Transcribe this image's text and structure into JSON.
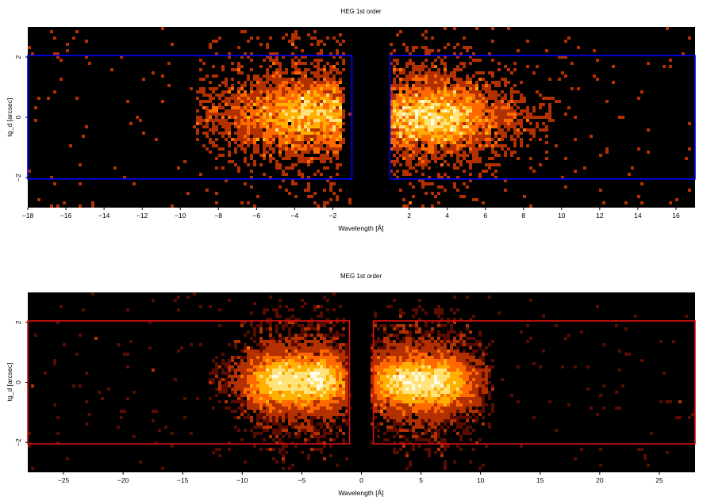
{
  "chart_data": [
    {
      "type": "heatmap",
      "title": "HEG 1st order",
      "xlabel": "Wavelength [Å]",
      "ylabel": "tg_d [arcsec]",
      "xlim": [
        -18,
        17
      ],
      "ylim": [
        -3,
        3
      ],
      "xticks": [
        -18,
        -16,
        -14,
        -12,
        -10,
        -8,
        -6,
        -4,
        -2,
        2,
        4,
        6,
        8,
        10,
        12,
        14,
        16
      ],
      "yticks": [
        -2,
        0,
        2
      ],
      "background": "#000000",
      "colormap": [
        "#5a0c00",
        "#b33000",
        "#ff6a00",
        "#ffb000",
        "#ffe27a",
        "#fffde8"
      ],
      "extraction_regions": {
        "color": "#0000ff",
        "boxes": [
          {
            "x": [
              -18,
              -1
            ],
            "y": [
              -2.05,
              2.05
            ]
          },
          {
            "x": [
              1,
              17
            ],
            "y": [
              -2.05,
              2.05
            ]
          }
        ]
      },
      "clusters": [
        {
          "x0": -8.6,
          "x1": -1.5,
          "xpeak": -3.0,
          "sigma_x": 2.2,
          "sigma_y": 0.6,
          "y_center": 0.1,
          "peak": 1.0
        },
        {
          "x0": 1.6,
          "x1": 9.5,
          "xpeak": 3.0,
          "sigma_x": 1.8,
          "sigma_y": 0.55,
          "y_center": 0.0,
          "peak": 1.0
        }
      ]
    },
    {
      "type": "heatmap",
      "title": "MEG 1st order",
      "xlabel": "Wavelength [Å]",
      "ylabel": "tg_d [arcsec]",
      "xlim": [
        -28,
        28
      ],
      "ylim": [
        -3,
        3
      ],
      "xticks": [
        -25,
        -20,
        -15,
        -10,
        -5,
        0,
        5,
        10,
        15,
        20,
        25
      ],
      "yticks": [
        -2,
        0,
        2
      ],
      "background": "#000000",
      "colormap": [
        "#5a0c00",
        "#b33000",
        "#ff6a00",
        "#ffb000",
        "#ffe27a",
        "#fffde8"
      ],
      "extraction_regions": {
        "color": "#dd1111",
        "boxes": [
          {
            "x": [
              -28,
              -1
            ],
            "y": [
              -2.05,
              2.05
            ]
          },
          {
            "x": [
              1,
              28
            ],
            "y": [
              -2.05,
              2.05
            ]
          }
        ]
      },
      "clusters": [
        {
          "x0": -12.5,
          "x1": -1.2,
          "xpeak": -7.0,
          "sigma_x": 1.3,
          "sigma_y": 0.45,
          "y_center": 0.05,
          "peak": 1.0
        },
        {
          "x0": -12.5,
          "x1": -1.2,
          "xpeak": -3.6,
          "sigma_x": 1.2,
          "sigma_y": 0.45,
          "y_center": 0.05,
          "peak": 1.0
        },
        {
          "x0": 1.5,
          "x1": 11.0,
          "xpeak": 3.5,
          "sigma_x": 1.4,
          "sigma_y": 0.45,
          "y_center": 0.0,
          "peak": 1.0
        },
        {
          "x0": 1.5,
          "x1": 11.0,
          "xpeak": 6.5,
          "sigma_x": 1.4,
          "sigma_y": 0.45,
          "y_center": 0.0,
          "peak": 1.0
        }
      ]
    }
  ]
}
